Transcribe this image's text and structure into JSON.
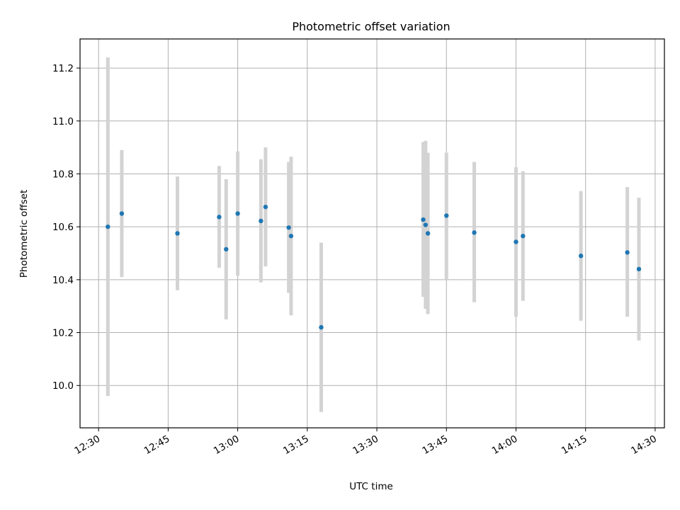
{
  "chart_data": {
    "type": "scatter",
    "title": "Photometric offset variation",
    "xlabel": "UTC time",
    "ylabel": "Photometric offset",
    "grid": true,
    "x_tick_labels": [
      "12:30",
      "12:45",
      "13:00",
      "13:15",
      "13:30",
      "13:45",
      "14:00",
      "14:15",
      "14:30"
    ],
    "x_ticks": [
      "12:30",
      "12:45",
      "13:00",
      "13:15",
      "13:30",
      "13:45",
      "14:00",
      "14:15",
      "14:30"
    ],
    "y_ticks": [
      10.0,
      10.2,
      10.4,
      10.6,
      10.8,
      11.0,
      11.2
    ],
    "y_tick_labels": [
      "10.0",
      "10.2",
      "10.4",
      "10.6",
      "10.8",
      "11.0",
      "11.2"
    ],
    "xlim": [
      "12:26",
      "14:32"
    ],
    "ylim": [
      9.84,
      11.31
    ],
    "errorbar_color": "#d3d3d3",
    "point_color": "#1f77b4",
    "points": [
      {
        "x": "12:32",
        "y": 10.6,
        "lo": 9.96,
        "hi": 11.24
      },
      {
        "x": "12:35",
        "y": 10.65,
        "lo": 10.41,
        "hi": 10.89
      },
      {
        "x": "12:47",
        "y": 10.575,
        "lo": 10.36,
        "hi": 10.79
      },
      {
        "x": "12:56",
        "y": 10.637,
        "lo": 10.445,
        "hi": 10.83
      },
      {
        "x": "12:57:30",
        "y": 10.515,
        "lo": 10.25,
        "hi": 10.78
      },
      {
        "x": "13:00",
        "y": 10.65,
        "lo": 10.415,
        "hi": 10.885
      },
      {
        "x": "13:05",
        "y": 10.622,
        "lo": 10.39,
        "hi": 10.855
      },
      {
        "x": "13:06",
        "y": 10.675,
        "lo": 10.45,
        "hi": 10.9
      },
      {
        "x": "13:11",
        "y": 10.597,
        "lo": 10.35,
        "hi": 10.845
      },
      {
        "x": "13:11:30",
        "y": 10.565,
        "lo": 10.265,
        "hi": 10.865
      },
      {
        "x": "13:18",
        "y": 10.22,
        "lo": 9.9,
        "hi": 10.54
      },
      {
        "x": "13:40",
        "y": 10.627,
        "lo": 10.335,
        "hi": 10.92
      },
      {
        "x": "13:40:30",
        "y": 10.607,
        "lo": 10.29,
        "hi": 10.925
      },
      {
        "x": "13:41",
        "y": 10.575,
        "lo": 10.27,
        "hi": 10.88
      },
      {
        "x": "13:45",
        "y": 10.642,
        "lo": 10.4,
        "hi": 10.88
      },
      {
        "x": "13:51",
        "y": 10.578,
        "lo": 10.315,
        "hi": 10.845
      },
      {
        "x": "14:00",
        "y": 10.543,
        "lo": 10.26,
        "hi": 10.825
      },
      {
        "x": "14:01:30",
        "y": 10.565,
        "lo": 10.32,
        "hi": 10.81
      },
      {
        "x": "14:14",
        "y": 10.49,
        "lo": 10.245,
        "hi": 10.735
      },
      {
        "x": "14:24",
        "y": 10.503,
        "lo": 10.26,
        "hi": 10.75
      },
      {
        "x": "14:26:30",
        "y": 10.44,
        "lo": 10.17,
        "hi": 10.71
      }
    ]
  }
}
